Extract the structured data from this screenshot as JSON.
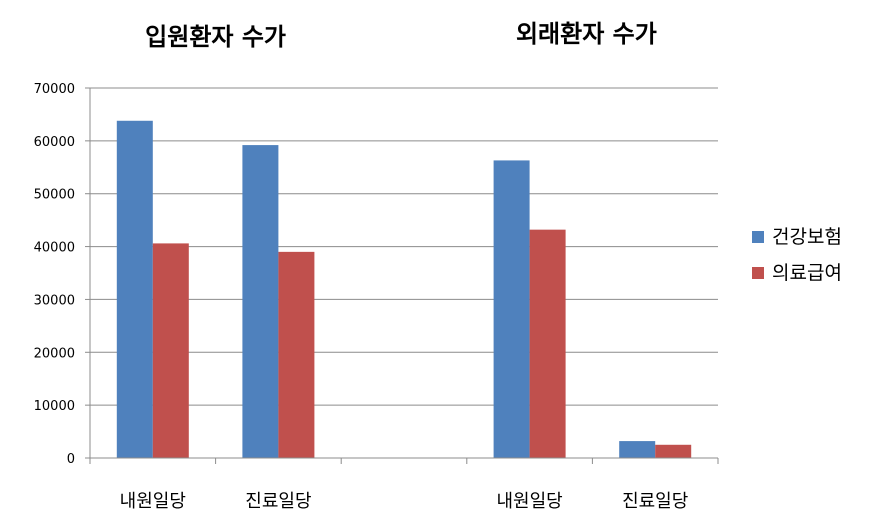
{
  "chart_data": {
    "type": "bar",
    "group_titles": [
      "입원환자 수가",
      "외래환자 수가"
    ],
    "categories": [
      "내원일당",
      "진료일당",
      "",
      "내원일당",
      "진료일당"
    ],
    "series": [
      {
        "name": "건강보험",
        "color": "#4F81BD",
        "values": [
          63800,
          59200,
          null,
          56300,
          3200
        ]
      },
      {
        "name": "의료급여",
        "color": "#C0504D",
        "values": [
          40600,
          39000,
          null,
          43200,
          2500
        ]
      }
    ],
    "ylim": [
      0,
      70000
    ],
    "yticks": [
      0,
      10000,
      20000,
      30000,
      40000,
      50000,
      60000,
      70000
    ],
    "grid": true,
    "legend_position": "right"
  }
}
